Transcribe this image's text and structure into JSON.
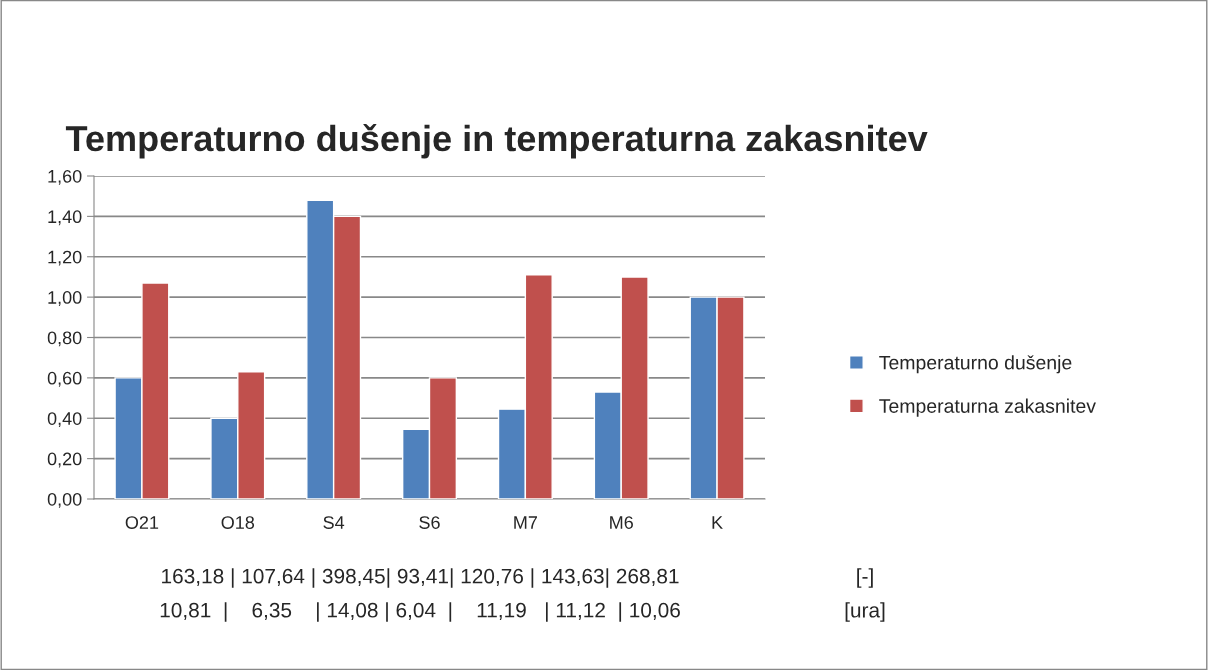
{
  "chart_data": {
    "type": "bar",
    "title": "Temperaturno dušenje in temperaturna zakasnitev",
    "categories": [
      "O21",
      "O18",
      "S4",
      "S6",
      "M7",
      "M6",
      "K"
    ],
    "series": [
      {
        "name": "Temperaturno dušenje",
        "color": "#4f81bd",
        "values": [
          0.6,
          0.4,
          1.48,
          0.345,
          0.445,
          0.53,
          1.0
        ]
      },
      {
        "name": "Temperaturna zakasnitev",
        "color": "#c0504d",
        "values": [
          1.07,
          0.63,
          1.4,
          0.6,
          1.11,
          1.1,
          1.0
        ]
      }
    ],
    "ylim": [
      0,
      1.6
    ],
    "yticks": [
      {
        "value": 0,
        "label": "0,00"
      },
      {
        "value": 0.2,
        "label": "0,20"
      },
      {
        "value": 0.4,
        "label": "0,40"
      },
      {
        "value": 0.6,
        "label": "0,60"
      },
      {
        "value": 0.8,
        "label": "0,80"
      },
      {
        "value": 1.0,
        "label": "1,00"
      },
      {
        "value": 1.2,
        "label": "1,20"
      },
      {
        "value": 1.4,
        "label": "1,40"
      },
      {
        "value": 1.6,
        "label": "1,60"
      }
    ],
    "grid": "y",
    "legend": "right",
    "annotations": [
      "163,18 | 107,64 | 398,45| 93,41| 120,76 | 143,63| 268,81",
      "[-]",
      "10,81  |    6,35    | 14,08 | 6,04  |    11,19   | 11,12  | 10,06",
      "[ura]"
    ]
  }
}
